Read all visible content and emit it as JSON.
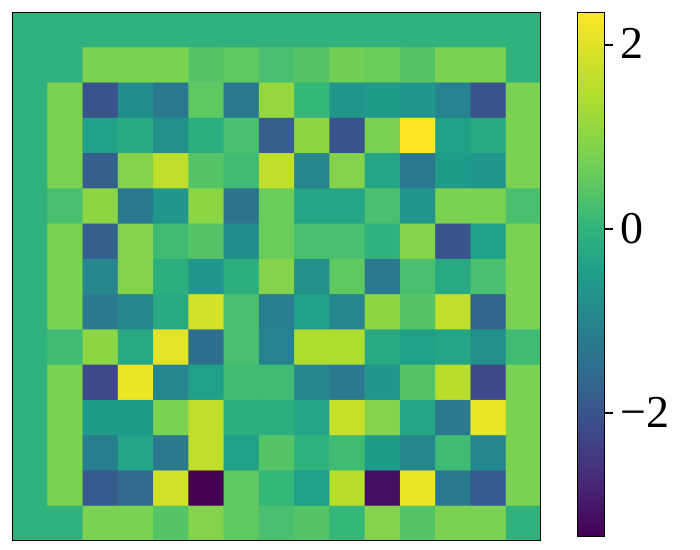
{
  "chart_data": {
    "type": "heatmap",
    "title": "",
    "xlabel": "",
    "ylabel": "",
    "colormap": "viridis",
    "vmin": -3.2,
    "vmax": 2.3,
    "colorbar": {
      "ticks": [
        2,
        0,
        -2
      ],
      "tick_labels": [
        "2",
        "0",
        "−2"
      ]
    },
    "matrix": [
      [
        0.0,
        0.0,
        0.0,
        0.0,
        0.0,
        0.0,
        0.0,
        0.0,
        0.0,
        0.0,
        0.0,
        0.0,
        0.0,
        0.0,
        0.0
      ],
      [
        0.0,
        0.0,
        0.8,
        0.8,
        0.8,
        0.4,
        0.5,
        0.3,
        0.4,
        0.7,
        0.6,
        0.4,
        0.8,
        0.8,
        0.0
      ],
      [
        0.0,
        0.8,
        -1.9,
        -0.8,
        -1.2,
        0.5,
        -1.2,
        1.1,
        0.1,
        -0.6,
        -0.5,
        -0.6,
        -1.0,
        -1.9,
        0.8
      ],
      [
        0.0,
        0.8,
        -0.4,
        -0.2,
        -0.7,
        -0.1,
        0.3,
        -1.7,
        1.0,
        -1.9,
        0.8,
        2.3,
        -0.4,
        -0.2,
        0.8
      ],
      [
        0.0,
        0.8,
        -1.7,
        0.9,
        1.6,
        0.4,
        0.2,
        1.6,
        -0.9,
        0.9,
        -0.3,
        -1.2,
        -0.5,
        -0.6,
        0.8
      ],
      [
        0.0,
        0.3,
        1.0,
        -1.2,
        -0.6,
        1.0,
        -1.3,
        0.6,
        -0.3,
        -0.3,
        0.3,
        -0.6,
        0.8,
        0.8,
        0.3
      ],
      [
        0.0,
        0.8,
        -1.7,
        0.9,
        0.2,
        0.4,
        -0.8,
        0.6,
        0.3,
        0.3,
        0.0,
        0.9,
        -1.9,
        -0.4,
        0.8
      ],
      [
        0.0,
        0.8,
        -0.9,
        0.9,
        -0.1,
        -0.6,
        -0.1,
        0.9,
        -0.7,
        0.5,
        -1.2,
        0.3,
        -0.2,
        0.3,
        0.8
      ],
      [
        0.0,
        0.8,
        -1.2,
        -0.9,
        -0.2,
        1.8,
        0.3,
        -1.1,
        -0.4,
        -0.9,
        1.0,
        0.4,
        1.6,
        -1.6,
        0.8
      ],
      [
        0.0,
        0.2,
        1.0,
        -0.2,
        2.0,
        -1.4,
        0.3,
        -1.0,
        1.4,
        1.4,
        -0.2,
        -0.4,
        -0.3,
        -0.7,
        0.2
      ],
      [
        0.0,
        0.8,
        -2.1,
        2.1,
        -0.9,
        -0.4,
        0.2,
        0.2,
        -0.9,
        -1.2,
        -0.6,
        0.4,
        1.5,
        -2.1,
        0.8
      ],
      [
        0.0,
        0.8,
        -0.5,
        -0.5,
        0.8,
        1.6,
        -0.1,
        -0.1,
        -0.3,
        1.7,
        0.9,
        -0.3,
        -1.2,
        2.1,
        0.8
      ],
      [
        0.0,
        0.8,
        -1.1,
        -0.3,
        -1.2,
        1.6,
        -0.4,
        0.4,
        0.0,
        0.2,
        -0.5,
        -0.9,
        0.2,
        -0.9,
        0.8
      ],
      [
        0.0,
        0.8,
        -1.8,
        -1.5,
        1.8,
        -3.2,
        0.5,
        0.1,
        -0.4,
        1.5,
        -3.0,
        2.1,
        -1.2,
        -1.8,
        0.8
      ],
      [
        0.0,
        0.0,
        0.8,
        0.8,
        0.4,
        0.9,
        0.5,
        0.3,
        0.4,
        0.1,
        0.9,
        0.4,
        0.8,
        0.8,
        0.0
      ]
    ]
  }
}
